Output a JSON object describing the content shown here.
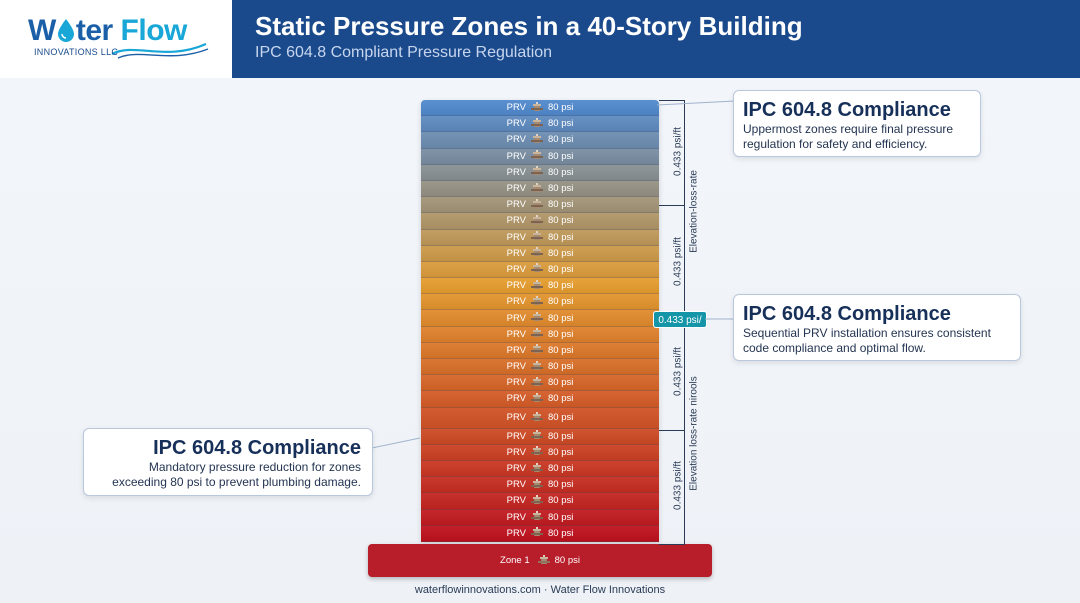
{
  "header": {
    "logo_word_a": "W",
    "logo_word_b": "ter",
    "logo_word_c": "Flow",
    "logo_sub": "INNOVATIONS LLC",
    "title": "Static Pressure Zones in a 40-Story Building",
    "subtitle": "IPC 604.8 Compliant Pressure Regulation"
  },
  "tower": {
    "prv_label": "PRV",
    "pressure_label": "80 psi",
    "floor_count": 27,
    "tall_floor_index": 19,
    "colors": {
      "top": "#5a8fd0",
      "middle": "#e8a33a",
      "bottom": "#c21f2b"
    },
    "base": {
      "zone_label": "Zone 1",
      "pressure_label": "80 psi"
    }
  },
  "rail": {
    "labels": [
      "0.433 psi/ft",
      "Elevation-loss-rate",
      "0.433 psi/ft",
      "0.433 psi/ft",
      "Elevation loss-rate nirools",
      "0.433 psi/ft"
    ],
    "badge": "0.433 psi/"
  },
  "callouts": [
    {
      "title": "IPC 604.8 Compliance",
      "line1": "Uppermost zones require final pressure",
      "line2": "regulation for safety and efficiency."
    },
    {
      "title": "IPC 604.8 Compliance",
      "line1": "Sequential PRV installation ensures consistent",
      "line2": "code compliance and optimal flow."
    },
    {
      "title": "IPC 604.8 Compliance",
      "line1": "Mandatory pressure reduction for zones",
      "line2": "exceeding 80 psi to prevent plumbing damage."
    }
  ],
  "footer": "waterflowinnovations.com · Water Flow Innovations"
}
